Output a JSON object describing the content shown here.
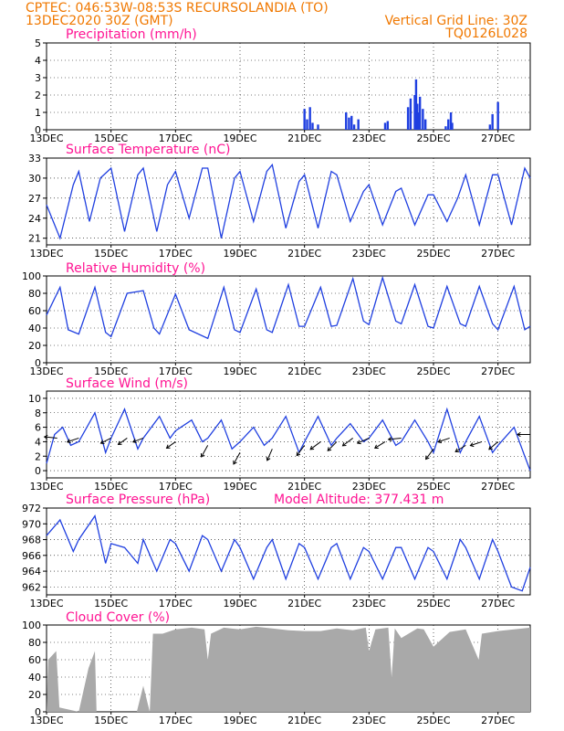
{
  "header": {
    "line1": "CPTEC:   046:53W-08:53S   RECURSOLANDIA (TO)",
    "line2": "13DEC2020 30Z (GMT)",
    "grid_note": "Vertical Grid Line: 30Z",
    "code": "TQ0126L028"
  },
  "x_ticks": [
    "13DEC",
    "15DEC",
    "17DEC",
    "19DEC",
    "21DEC",
    "23DEC",
    "25DEC",
    "27DEC"
  ],
  "x_tick_positions": [
    0,
    2,
    4,
    6,
    8,
    10,
    12,
    14
  ],
  "x_range": [
    0,
    15
  ],
  "colors": {
    "header": "#f07800",
    "title": "#ff1493",
    "series": "#1f3fe0",
    "cloud": "#a9a9a9"
  },
  "chart_data": [
    {
      "id": "precip",
      "type": "bar",
      "title": "Precipitation (mm/h)",
      "ylim": [
        0,
        5
      ],
      "yticks": [
        0,
        1,
        2,
        3,
        4,
        5
      ],
      "x": [
        8.0,
        8.08,
        8.17,
        8.25,
        8.42,
        9.29,
        9.38,
        9.46,
        9.54,
        9.67,
        10.5,
        10.58,
        11.21,
        11.29,
        11.42,
        11.46,
        11.5,
        11.54,
        11.58,
        11.67,
        11.75,
        12.38,
        12.46,
        12.54,
        12.58,
        13.75,
        13.83,
        14.0
      ],
      "values": [
        1.2,
        0.6,
        1.3,
        0.4,
        0.3,
        1.0,
        0.7,
        0.8,
        0.3,
        0.6,
        0.4,
        0.5,
        1.3,
        1.8,
        2.0,
        2.9,
        1.5,
        1.0,
        1.9,
        1.2,
        0.6,
        0.2,
        0.6,
        1.0,
        0.4,
        0.3,
        0.9,
        1.6
      ]
    },
    {
      "id": "temp",
      "type": "line",
      "title": "Surface Temperature (nC)",
      "ylim": [
        20,
        33
      ],
      "yticks": [
        21,
        24,
        27,
        30,
        33
      ],
      "points": [
        [
          0,
          26.0
        ],
        [
          0.42,
          21.0
        ],
        [
          0.83,
          29.0
        ],
        [
          1.0,
          31.0
        ],
        [
          1.33,
          23.5
        ],
        [
          1.67,
          30.0
        ],
        [
          2.0,
          31.5
        ],
        [
          2.42,
          22.0
        ],
        [
          2.83,
          30.5
        ],
        [
          3.0,
          31.5
        ],
        [
          3.42,
          22.0
        ],
        [
          3.75,
          29.0
        ],
        [
          4.0,
          31.0
        ],
        [
          4.42,
          24.0
        ],
        [
          4.83,
          31.5
        ],
        [
          5.0,
          31.5
        ],
        [
          5.42,
          21.0
        ],
        [
          5.83,
          30.0
        ],
        [
          6.0,
          31.0
        ],
        [
          6.42,
          23.5
        ],
        [
          6.83,
          31.0
        ],
        [
          7.0,
          32.0
        ],
        [
          7.42,
          22.5
        ],
        [
          7.83,
          29.5
        ],
        [
          8.0,
          30.5
        ],
        [
          8.42,
          22.5
        ],
        [
          8.83,
          31.0
        ],
        [
          9.0,
          30.5
        ],
        [
          9.42,
          23.5
        ],
        [
          9.83,
          28.0
        ],
        [
          10.0,
          29.0
        ],
        [
          10.42,
          23.0
        ],
        [
          10.83,
          28.0
        ],
        [
          11.0,
          28.5
        ],
        [
          11.42,
          23.0
        ],
        [
          11.83,
          27.5
        ],
        [
          12.0,
          27.5
        ],
        [
          12.42,
          23.5
        ],
        [
          12.75,
          27.0
        ],
        [
          13.0,
          30.5
        ],
        [
          13.42,
          23.0
        ],
        [
          13.83,
          30.5
        ],
        [
          14.0,
          30.5
        ],
        [
          14.42,
          23.0
        ],
        [
          14.83,
          31.5
        ],
        [
          15.0,
          30.0
        ]
      ]
    },
    {
      "id": "rh",
      "type": "line",
      "title": "Relative Humidity (%)",
      "ylim": [
        0,
        100
      ],
      "yticks": [
        0,
        20,
        40,
        60,
        80,
        100
      ],
      "points": [
        [
          0,
          55
        ],
        [
          0.42,
          87
        ],
        [
          0.67,
          38
        ],
        [
          1.0,
          33
        ],
        [
          1.5,
          87
        ],
        [
          1.83,
          35
        ],
        [
          2.0,
          30
        ],
        [
          2.5,
          80
        ],
        [
          3.0,
          83
        ],
        [
          3.33,
          40
        ],
        [
          3.5,
          33
        ],
        [
          4.0,
          79
        ],
        [
          4.42,
          38
        ],
        [
          5.0,
          28
        ],
        [
          5.5,
          87
        ],
        [
          5.83,
          38
        ],
        [
          6.0,
          35
        ],
        [
          6.5,
          85
        ],
        [
          6.83,
          38
        ],
        [
          7.0,
          35
        ],
        [
          7.5,
          90
        ],
        [
          7.83,
          42
        ],
        [
          8.0,
          42
        ],
        [
          8.5,
          87
        ],
        [
          8.83,
          42
        ],
        [
          9.0,
          43
        ],
        [
          9.5,
          97
        ],
        [
          9.83,
          48
        ],
        [
          10.0,
          44
        ],
        [
          10.42,
          98
        ],
        [
          10.83,
          48
        ],
        [
          11.0,
          45
        ],
        [
          11.42,
          90
        ],
        [
          11.83,
          42
        ],
        [
          12.0,
          40
        ],
        [
          12.42,
          88
        ],
        [
          12.83,
          45
        ],
        [
          13.0,
          42
        ],
        [
          13.42,
          88
        ],
        [
          13.83,
          45
        ],
        [
          14.0,
          38
        ],
        [
          14.5,
          88
        ],
        [
          14.83,
          38
        ],
        [
          15.0,
          42
        ]
      ]
    },
    {
      "id": "wind",
      "type": "line",
      "title": "Surface Wind (m/s)",
      "ylim": [
        -1,
        11
      ],
      "yticks": [
        0,
        2,
        4,
        6,
        8,
        10
      ],
      "points": [
        [
          0,
          1
        ],
        [
          0.25,
          5
        ],
        [
          0.5,
          6
        ],
        [
          0.75,
          3.5
        ],
        [
          1.0,
          4
        ],
        [
          1.5,
          8
        ],
        [
          1.83,
          2.5
        ],
        [
          2.0,
          4.5
        ],
        [
          2.42,
          8.5
        ],
        [
          2.83,
          3
        ],
        [
          3.0,
          4.5
        ],
        [
          3.5,
          7.5
        ],
        [
          3.83,
          4.5
        ],
        [
          4.0,
          5.5
        ],
        [
          4.5,
          7
        ],
        [
          4.83,
          4
        ],
        [
          5.0,
          4.5
        ],
        [
          5.42,
          7
        ],
        [
          5.75,
          3
        ],
        [
          6.0,
          4
        ],
        [
          6.42,
          6
        ],
        [
          6.75,
          3.5
        ],
        [
          7.0,
          4.5
        ],
        [
          7.42,
          7.5
        ],
        [
          7.83,
          2.5
        ],
        [
          8.0,
          4
        ],
        [
          8.42,
          7.5
        ],
        [
          8.83,
          3.5
        ],
        [
          9.0,
          4.5
        ],
        [
          9.42,
          6.5
        ],
        [
          9.83,
          4
        ],
        [
          10.0,
          4.5
        ],
        [
          10.42,
          7
        ],
        [
          10.83,
          3.5
        ],
        [
          11.0,
          4
        ],
        [
          11.42,
          7
        ],
        [
          11.83,
          4
        ],
        [
          12.0,
          2.5
        ],
        [
          12.42,
          8.5
        ],
        [
          12.83,
          2.5
        ],
        [
          13.0,
          4
        ],
        [
          13.42,
          7.5
        ],
        [
          13.83,
          2.5
        ],
        [
          14.0,
          3.5
        ],
        [
          14.5,
          6
        ],
        [
          14.83,
          2
        ],
        [
          15.0,
          0
        ]
      ],
      "vectors": [
        [
          0.33,
          4.5,
          -1.0,
          -0.1
        ],
        [
          1.0,
          4.5,
          -0.9,
          0.3
        ],
        [
          2.0,
          4.5,
          -0.8,
          0.4
        ],
        [
          2.5,
          4.5,
          -0.7,
          0.5
        ],
        [
          3.0,
          4.5,
          -0.8,
          0.3
        ],
        [
          4.0,
          4.0,
          -0.7,
          0.5
        ],
        [
          5.0,
          3.5,
          -0.5,
          0.9
        ],
        [
          6.0,
          2.5,
          -0.5,
          0.9
        ],
        [
          7.0,
          3.0,
          -0.4,
          0.9
        ],
        [
          8.0,
          3.5,
          -0.6,
          0.8
        ],
        [
          8.5,
          4.0,
          -0.8,
          0.6
        ],
        [
          9.0,
          4.0,
          -0.7,
          0.7
        ],
        [
          9.5,
          4.5,
          -0.8,
          0.6
        ],
        [
          10.0,
          4.5,
          -0.9,
          0.4
        ],
        [
          10.5,
          4.0,
          -0.8,
          0.5
        ],
        [
          11.0,
          4.5,
          -1.0,
          0.1
        ],
        [
          12.0,
          3.0,
          -0.6,
          0.8
        ],
        [
          12.5,
          4.5,
          -0.9,
          0.3
        ],
        [
          13.0,
          3.5,
          -0.8,
          0.5
        ],
        [
          13.5,
          4.0,
          -0.9,
          0.3
        ],
        [
          14.0,
          4.0,
          -0.7,
          0.6
        ],
        [
          15.0,
          5.0,
          -1.0,
          0.0
        ]
      ]
    },
    {
      "id": "pressure",
      "type": "line",
      "title": "Surface Pressure (hPa)",
      "subtitle": "Model Altitude: 377.431  m",
      "ylim": [
        961,
        972
      ],
      "yticks": [
        962,
        964,
        966,
        968,
        970,
        972
      ],
      "points": [
        [
          0,
          968.5
        ],
        [
          0.42,
          970.5
        ],
        [
          0.83,
          966.5
        ],
        [
          1.0,
          968
        ],
        [
          1.5,
          971
        ],
        [
          1.83,
          965
        ],
        [
          2.0,
          967.5
        ],
        [
          2.42,
          967
        ],
        [
          2.83,
          965
        ],
        [
          3.0,
          968
        ],
        [
          3.42,
          964
        ],
        [
          3.83,
          968
        ],
        [
          4.0,
          967.5
        ],
        [
          4.42,
          964
        ],
        [
          4.83,
          968.5
        ],
        [
          5.0,
          968
        ],
        [
          5.42,
          964
        ],
        [
          5.83,
          968
        ],
        [
          6.0,
          967
        ],
        [
          6.42,
          963
        ],
        [
          6.83,
          967
        ],
        [
          7.0,
          968
        ],
        [
          7.42,
          963
        ],
        [
          7.83,
          967.5
        ],
        [
          8.0,
          967
        ],
        [
          8.42,
          963
        ],
        [
          8.83,
          967
        ],
        [
          9.0,
          967.5
        ],
        [
          9.42,
          963
        ],
        [
          9.83,
          967
        ],
        [
          10.0,
          966.5
        ],
        [
          10.42,
          963
        ],
        [
          10.83,
          967
        ],
        [
          11.0,
          967
        ],
        [
          11.42,
          963
        ],
        [
          11.83,
          967
        ],
        [
          12.0,
          966.5
        ],
        [
          12.42,
          963
        ],
        [
          12.83,
          968
        ],
        [
          13.0,
          967
        ],
        [
          13.42,
          963
        ],
        [
          13.83,
          968
        ],
        [
          14.0,
          966.5
        ],
        [
          14.42,
          962
        ],
        [
          14.75,
          961.5
        ],
        [
          15.0,
          964.5
        ]
      ]
    },
    {
      "id": "cloud",
      "type": "area",
      "title": "Cloud Cover (%)",
      "ylim": [
        0,
        100
      ],
      "yticks": [
        0,
        20,
        40,
        60,
        80,
        100
      ],
      "points": [
        [
          0,
          0
        ],
        [
          0.05,
          60
        ],
        [
          0.3,
          70
        ],
        [
          0.4,
          5
        ],
        [
          1.0,
          0
        ],
        [
          1.3,
          50
        ],
        [
          1.5,
          70
        ],
        [
          1.55,
          0
        ],
        [
          2.0,
          0
        ],
        [
          2.8,
          0
        ],
        [
          3.0,
          30
        ],
        [
          3.2,
          0
        ],
        [
          3.3,
          90
        ],
        [
          3.6,
          90
        ],
        [
          4.0,
          95
        ],
        [
          4.5,
          97
        ],
        [
          4.9,
          95
        ],
        [
          5.0,
          60
        ],
        [
          5.1,
          90
        ],
        [
          5.5,
          97
        ],
        [
          6.0,
          95
        ],
        [
          6.5,
          98
        ],
        [
          7.0,
          96
        ],
        [
          7.5,
          94
        ],
        [
          8.0,
          93
        ],
        [
          8.5,
          93
        ],
        [
          9.0,
          96
        ],
        [
          9.5,
          94
        ],
        [
          9.9,
          97
        ],
        [
          10.0,
          70
        ],
        [
          10.2,
          95
        ],
        [
          10.6,
          97
        ],
        [
          10.7,
          40
        ],
        [
          10.8,
          96
        ],
        [
          11.0,
          85
        ],
        [
          11.5,
          96
        ],
        [
          11.7,
          95
        ],
        [
          12.0,
          75
        ],
        [
          12.5,
          92
        ],
        [
          13.0,
          95
        ],
        [
          13.4,
          60
        ],
        [
          13.5,
          90
        ],
        [
          14.0,
          93
        ],
        [
          14.5,
          95
        ],
        [
          15.0,
          97
        ],
        [
          15.0,
          0
        ]
      ]
    }
  ]
}
